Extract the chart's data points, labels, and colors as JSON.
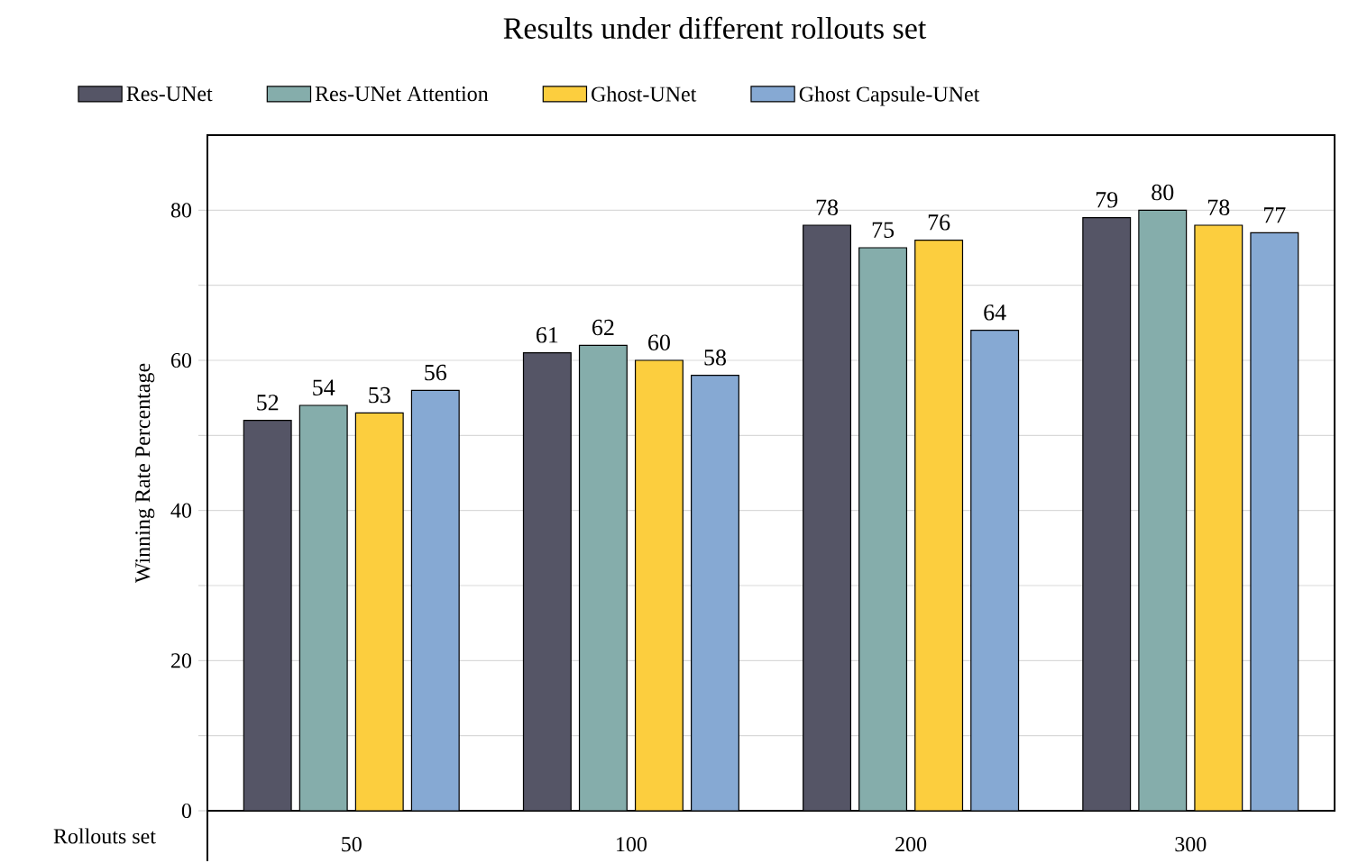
{
  "chart_data": {
    "type": "bar",
    "title": "Results under different rollouts set",
    "xlabel": "Rollouts set",
    "ylabel": "Winning Rate Percentage",
    "categories": [
      "50",
      "100",
      "200",
      "300"
    ],
    "series": [
      {
        "name": "Res-UNet",
        "color": "#555566",
        "values": [
          52,
          61,
          78,
          79
        ]
      },
      {
        "name": "Res-UNet Attention",
        "color": "#85adab",
        "values": [
          54,
          62,
          75,
          80
        ]
      },
      {
        "name": "Ghost-UNet",
        "color": "#fcce3e",
        "values": [
          53,
          60,
          76,
          78
        ]
      },
      {
        "name": "Ghost Capsule-UNet",
        "color": "#86a9d3",
        "values": [
          56,
          58,
          64,
          77
        ]
      }
    ],
    "ylim": [
      0,
      90
    ],
    "yticks": [
      0,
      {
        "value": 10,
        "label": null
      },
      20,
      {
        "value": 30,
        "label": null
      },
      40,
      {
        "value": 50,
        "label": null
      },
      60,
      {
        "value": 70,
        "label": null
      },
      80
    ],
    "grid": "y",
    "legend": "top",
    "data_labels": true
  }
}
